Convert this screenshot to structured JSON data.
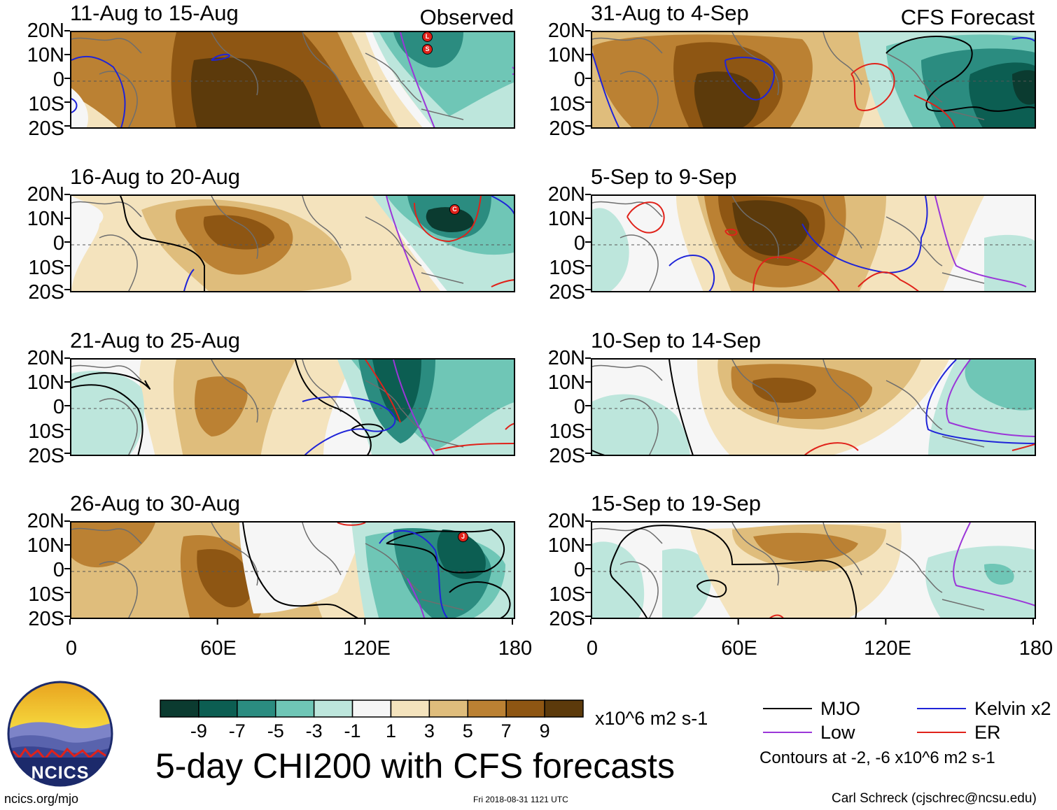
{
  "panels": [
    {
      "id": "p1",
      "title": "11-Aug to 15-Aug",
      "tag": "Observed"
    },
    {
      "id": "p2",
      "title": "16-Aug to 20-Aug",
      "tag": ""
    },
    {
      "id": "p3",
      "title": "21-Aug to 25-Aug",
      "tag": ""
    },
    {
      "id": "p4",
      "title": "26-Aug to 30-Aug",
      "tag": ""
    },
    {
      "id": "p5",
      "title": "31-Aug to 4-Sep",
      "tag": "CFS Forecast"
    },
    {
      "id": "p6",
      "title": "5-Sep to 9-Sep",
      "tag": ""
    },
    {
      "id": "p7",
      "title": "10-Sep to 14-Sep",
      "tag": ""
    },
    {
      "id": "p8",
      "title": "15-Sep to 19-Sep",
      "tag": ""
    }
  ],
  "lat_labels": [
    "20N",
    "10N",
    "0",
    "10S",
    "20S"
  ],
  "lon_labels": [
    "0",
    "60E",
    "120E",
    "180"
  ],
  "storm_markers": [
    {
      "panel": "p1",
      "letter": "L"
    },
    {
      "panel": "p1",
      "letter": "S"
    },
    {
      "panel": "p2",
      "letter": "C"
    },
    {
      "panel": "p4",
      "letter": "J"
    }
  ],
  "colorbar": {
    "colors": [
      "#0b3b30",
      "#0c5e52",
      "#2b8c80",
      "#6fc6b6",
      "#bde6dc",
      "#f6f6f6",
      "#f4e3bd",
      "#dfbd7c",
      "#bb8133",
      "#8e5613",
      "#5c3a0b"
    ],
    "labels": [
      "-9",
      "-7",
      "-5",
      "-3",
      "-1",
      "1",
      "3",
      "5",
      "7",
      "9"
    ],
    "units": "x10^6 m2 s-1"
  },
  "legend": {
    "items": [
      {
        "label": "MJO",
        "color": "#000000"
      },
      {
        "label": "Kelvin x2",
        "color": "#1f24d8"
      },
      {
        "label": "Low",
        "color": "#9b36d8"
      },
      {
        "label": "ER",
        "color": "#e0221a"
      }
    ],
    "note": "Contours at -2, -6 x10^6 m2 s-1"
  },
  "title": "5-day CHI200 with CFS forecasts",
  "logo_text": "NCICS",
  "footer": {
    "url": "ncics.org/mjo",
    "timestamp": "Fri 2018-08-31 1121 UTC",
    "credit": "Carl Schreck (cjschrec@ncsu.edu)"
  }
}
